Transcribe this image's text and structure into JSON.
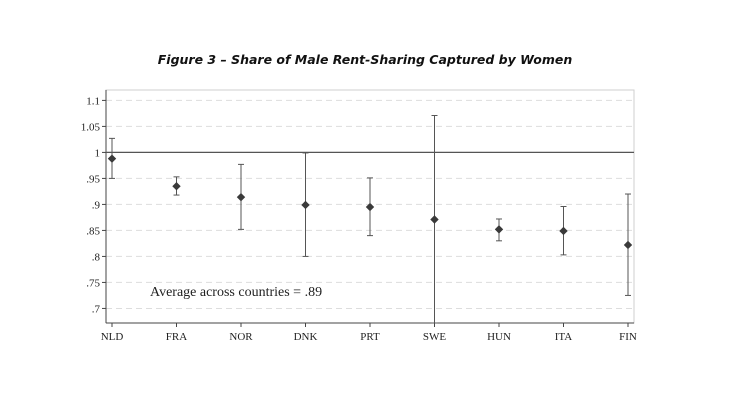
{
  "chart_data": {
    "type": "scatter",
    "title": "Figure 3 – Share of Male Rent-Sharing Captured by Women",
    "xlabel": "",
    "ylabel": "",
    "categories": [
      "NLD",
      "FRA",
      "NOR",
      "DNK",
      "PRT",
      "SWE",
      "HUN",
      "ITA",
      "FIN"
    ],
    "series": [
      {
        "values": [
          0.988,
          0.935,
          0.914,
          0.899,
          0.895,
          0.871,
          0.852,
          0.849,
          0.822
        ],
        "ci_lower": [
          0.95,
          0.918,
          0.852,
          0.8,
          0.84,
          0.672,
          0.83,
          0.803,
          0.725
        ],
        "ci_upper": [
          1.027,
          0.953,
          0.977,
          0.999,
          0.951,
          1.071,
          0.872,
          0.896,
          0.92
        ]
      }
    ],
    "ylim": [
      0.672,
      1.12
    ],
    "yticks": [
      0.7,
      0.75,
      0.8,
      0.85,
      0.9,
      0.95,
      1,
      1.05,
      1.1
    ],
    "ytick_labels": [
      ".7",
      ".75",
      ".8",
      ".85",
      ".9",
      ".95",
      "1",
      "1.05",
      "1.1"
    ],
    "reference_line": 1,
    "grid": true,
    "annotation": "Average across countries = .89",
    "colors": {
      "marker": "#3a3a3a",
      "grid": "#dddddd",
      "axis": "#444444"
    }
  }
}
